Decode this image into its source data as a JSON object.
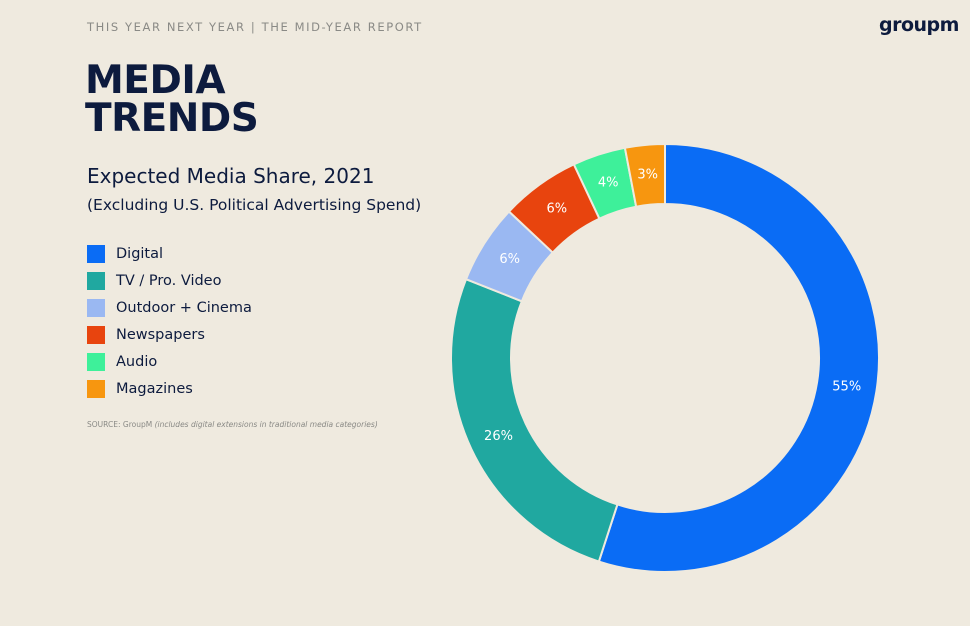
{
  "header": {
    "kicker": "THIS YEAR NEXT YEAR | THE MID-YEAR REPORT",
    "logo": "groupm"
  },
  "headline": {
    "line1": "MEDIA",
    "line2": "TRENDS"
  },
  "source": {
    "prefix": "SOURCE: GroupM",
    "note": "(includes digital extensions in traditional media categories)"
  },
  "chart_data": {
    "type": "pie",
    "title": "Expected Media Share, 2021",
    "subtitle": "(Excluding U.S. Political Advertising Spend)",
    "legend_position": "left",
    "categories": [
      "Digital",
      "TV / Pro. Video",
      "Outdoor + Cinema",
      "Newspapers",
      "Audio",
      "Magazines"
    ],
    "values": [
      55,
      26,
      6,
      6,
      4,
      3
    ],
    "labels": [
      "55%",
      "26%",
      "6%",
      "6%",
      "4%",
      "3%"
    ],
    "colors": [
      "#0a6cf5",
      "#20a8a0",
      "#9ab8f2",
      "#e8440e",
      "#3ef09a",
      "#f7960f"
    ],
    "donut": true
  }
}
